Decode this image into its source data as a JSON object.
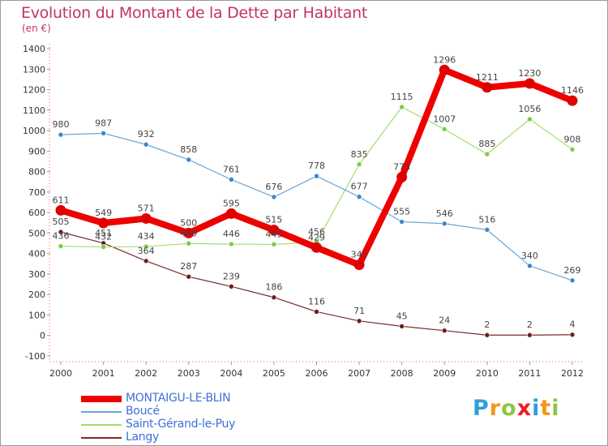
{
  "title": "Evolution du Montant de la Dette par Habitant",
  "subtitle": "(en €)",
  "brand": {
    "letters": [
      "P",
      "r",
      "o",
      "x",
      "i",
      "t",
      "i"
    ],
    "colors": [
      "#2f9fd8",
      "#f7941d",
      "#8dc63f",
      "#ec1c24",
      "#2f9fd8",
      "#f7941d",
      "#8dc63f"
    ]
  },
  "chart_data": {
    "type": "line",
    "title": "Evolution du Montant de la Dette par Habitant",
    "ylabel": "(en €)",
    "ylim": [
      -100,
      1400
    ],
    "yticks": [
      1400,
      1300,
      1200,
      1100,
      1000,
      900,
      800,
      700,
      600,
      500,
      400,
      300,
      200,
      100,
      0,
      -100
    ],
    "categories": [
      "2000",
      "2001",
      "2002",
      "2003",
      "2004",
      "2005",
      "2006",
      "2007",
      "2008",
      "2009",
      "2010",
      "2011",
      "2012"
    ],
    "grid": false,
    "legend_position": "bottom-left",
    "series": [
      {
        "name": "MONTAIGU-LE-BLIN",
        "color": "#ee0000",
        "marker": "#e00000",
        "width": 8,
        "values": [
          611,
          549,
          571,
          500,
          595,
          515,
          429,
          345,
          773,
          1296,
          1211,
          1230,
          1146
        ],
        "labels": [
          "611",
          "549",
          "571",
          "500",
          "595",
          "515",
          "429",
          "345",
          "773",
          "1296",
          "1211",
          "1230",
          "1146"
        ]
      },
      {
        "name": "Boucé",
        "color": "#6aa6d6",
        "marker": "#3f86c6",
        "width": 1.2,
        "values": [
          980,
          987,
          932,
          858,
          761,
          676,
          778,
          677,
          555,
          546,
          516,
          340,
          269
        ],
        "labels": [
          "980",
          "987",
          "932",
          "858",
          "761",
          "676",
          "778",
          "677",
          "555",
          "546",
          "516",
          "340",
          "269"
        ]
      },
      {
        "name": "Saint-Gérand-le-Puy",
        "color": "#9ee06a",
        "marker": "#7ccc45",
        "width": 1.2,
        "values": [
          436,
          432,
          434,
          449,
          446,
          445,
          456,
          835,
          1115,
          1007,
          885,
          1056,
          908
        ],
        "labels": [
          "436",
          "432",
          "434",
          "449",
          "446",
          "445",
          "456",
          "835",
          "1115",
          "1007",
          "885",
          "1056",
          "908"
        ]
      },
      {
        "name": "Langy",
        "color": "#7a2a2a",
        "marker": "#6b1f1f",
        "width": 1.2,
        "values": [
          505,
          451,
          364,
          287,
          239,
          186,
          116,
          71,
          45,
          24,
          2,
          2,
          4
        ],
        "labels": [
          "505",
          "451",
          "364",
          "287",
          "239",
          "186",
          "116",
          "71",
          "45",
          "24",
          "2",
          "2",
          "4"
        ]
      }
    ]
  }
}
